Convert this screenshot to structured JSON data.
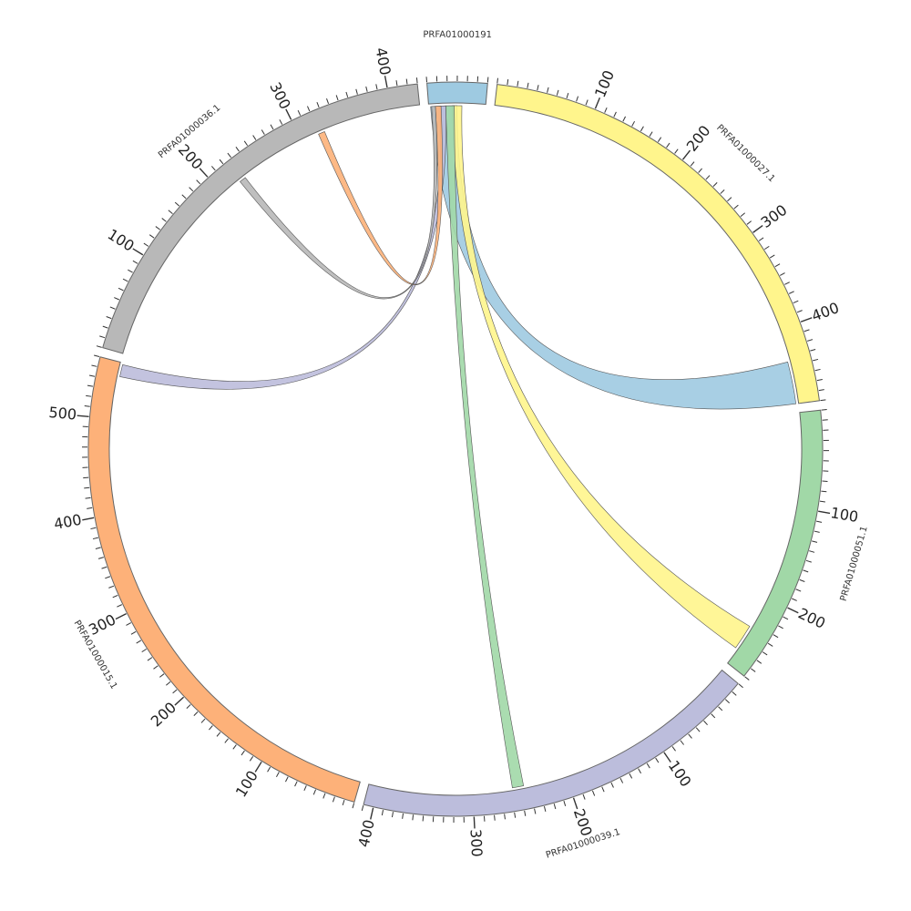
{
  "chart_data": {
    "type": "chord",
    "segments": [
      {
        "name": "PRFA01000191",
        "length": 60,
        "color": "#9ecae1",
        "ticks": []
      },
      {
        "name": "PRFA01000027.1",
        "length": 480,
        "color": "#fff58c",
        "ticks": [
          100,
          200,
          300,
          400
        ]
      },
      {
        "name": "PRFA01000051.1",
        "length": 280,
        "color": "#a1d8a7",
        "ticks": [
          100,
          200
        ]
      },
      {
        "name": "PRFA01000039.1",
        "length": 410,
        "color": "#bcbddc",
        "ticks": [
          100,
          200,
          300,
          400
        ]
      },
      {
        "name": "PRFA01000015.1",
        "length": 560,
        "color": "#fdb179",
        "ticks": [
          100,
          200,
          300,
          400,
          500
        ]
      },
      {
        "name": "PRFA01000036.1",
        "length": 430,
        "color": "#b8b8b8",
        "ticks": [
          100,
          200,
          300,
          400
        ]
      }
    ],
    "links": [
      {
        "source": "PRFA01000191",
        "source_range": [
          2,
          30
        ],
        "target": "PRFA01000027.1",
        "target_range": [
          435,
          480
        ],
        "color": "#9ecae1"
      },
      {
        "source": "PRFA01000191",
        "source_range": [
          25,
          35
        ],
        "target": "PRFA01000051.1",
        "target_range": [
          235,
          262
        ],
        "color": "#fff58c"
      },
      {
        "source": "PRFA01000191",
        "source_range": [
          18,
          27
        ],
        "target": "PRFA01000039.1",
        "target_range": [
          246,
          258
        ],
        "color": "#a1d8a7"
      },
      {
        "source": "PRFA01000191",
        "source_range": [
          12,
          18
        ],
        "target": "PRFA01000015.1",
        "target_range": [
          545,
          558
        ],
        "color": "#bcbddc"
      },
      {
        "source": "PRFA01000191",
        "source_range": [
          7,
          13
        ],
        "target": "PRFA01000036.1",
        "target_range": [
          319,
          326
        ],
        "color": "#fdb179"
      },
      {
        "source": "PRFA01000191",
        "source_range": [
          3,
          7
        ],
        "target": "PRFA01000036.1",
        "target_range": [
          222,
          229
        ],
        "color": "#b8b8b8"
      }
    ]
  }
}
